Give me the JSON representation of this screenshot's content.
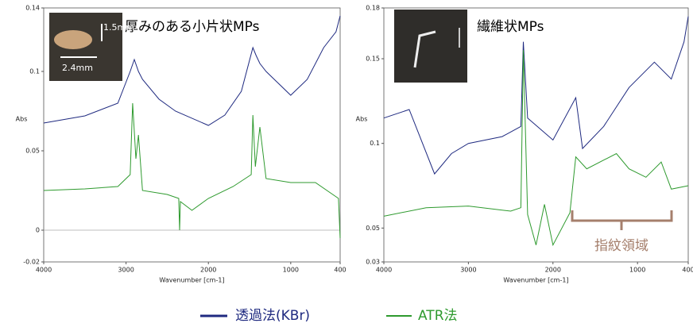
{
  "chart_data": [
    {
      "type": "line",
      "ylabel": "Abs",
      "xlabel": "Wavenumber [cm-1]",
      "xlim": [
        4000,
        400
      ],
      "xticks": [
        4000,
        3000,
        2000,
        1000,
        400
      ],
      "ylim": [
        -0.02,
        0.14
      ],
      "yticks": [
        -0.02,
        0,
        0.05,
        0.1,
        0.14
      ],
      "zero_line": true,
      "annotations": [
        "厚みのある小片状MPs",
        "1.5mm",
        "2.4mm"
      ],
      "series": [
        {
          "name": "透過法(KBr)",
          "color": "#1f2a80",
          "x": [
            4000,
            3500,
            3100,
            2950,
            2900,
            2850,
            2800,
            2600,
            2400,
            2000,
            1800,
            1600,
            1460,
            1420,
            1375,
            1300,
            1200,
            1000,
            800,
            600,
            450,
            400
          ],
          "values": [
            0.0675,
            0.072,
            0.08,
            0.1,
            0.1075,
            0.1,
            0.095,
            0.0825,
            0.075,
            0.066,
            0.0725,
            0.0875,
            0.115,
            0.11,
            0.105,
            0.1,
            0.095,
            0.085,
            0.095,
            0.115,
            0.125,
            0.135
          ]
        },
        {
          "name": "ATR法",
          "color": "#2e9a2e",
          "x": [
            4000,
            3500,
            3100,
            2950,
            2920,
            2880,
            2850,
            2800,
            2500,
            2360,
            2350,
            2340,
            2200,
            2000,
            1700,
            1480,
            1460,
            1430,
            1375,
            1300,
            1000,
            700,
            420,
            400
          ],
          "values": [
            0.025,
            0.026,
            0.0275,
            0.035,
            0.08,
            0.045,
            0.06,
            0.025,
            0.0225,
            0.02,
            0,
            0.018,
            0.0125,
            0.02,
            0.0275,
            0.035,
            0.0725,
            0.04,
            0.065,
            0.0325,
            0.03,
            0.03,
            0.02,
            -0.005
          ]
        }
      ]
    },
    {
      "type": "line",
      "ylabel": "Abs",
      "xlabel": "Wavenumber [cm-1]",
      "xlim": [
        4000,
        400
      ],
      "xticks": [
        4000,
        3000,
        2000,
        1000,
        400
      ],
      "ylim": [
        0.03,
        0.18
      ],
      "yticks": [
        0.03,
        0.05,
        0.1,
        0.15,
        0.18
      ],
      "zero_line": false,
      "annotations": [
        "繊維状MPs",
        "指紋領域"
      ],
      "series": [
        {
          "name": "透過法(KBr)",
          "color": "#1f2a80",
          "x": [
            4000,
            3700,
            3400,
            3200,
            3000,
            2600,
            2380,
            2350,
            2300,
            2000,
            1730,
            1650,
            1400,
            1100,
            800,
            600,
            450,
            400
          ],
          "values": [
            0.115,
            0.12,
            0.082,
            0.094,
            0.1,
            0.104,
            0.11,
            0.16,
            0.115,
            0.102,
            0.127,
            0.097,
            0.11,
            0.133,
            0.148,
            0.138,
            0.16,
            0.175
          ]
        },
        {
          "name": "ATR法",
          "color": "#2e9a2e",
          "x": [
            4000,
            3500,
            3000,
            2500,
            2380,
            2350,
            2300,
            2200,
            2100,
            2000,
            1800,
            1730,
            1600,
            1250,
            1100,
            900,
            720,
            600,
            400
          ],
          "values": [
            0.057,
            0.062,
            0.063,
            0.06,
            0.062,
            0.155,
            0.058,
            0.04,
            0.064,
            0.04,
            0.059,
            0.092,
            0.085,
            0.094,
            0.085,
            0.08,
            0.089,
            0.073,
            0.075
          ]
        }
      ]
    }
  ]
}
